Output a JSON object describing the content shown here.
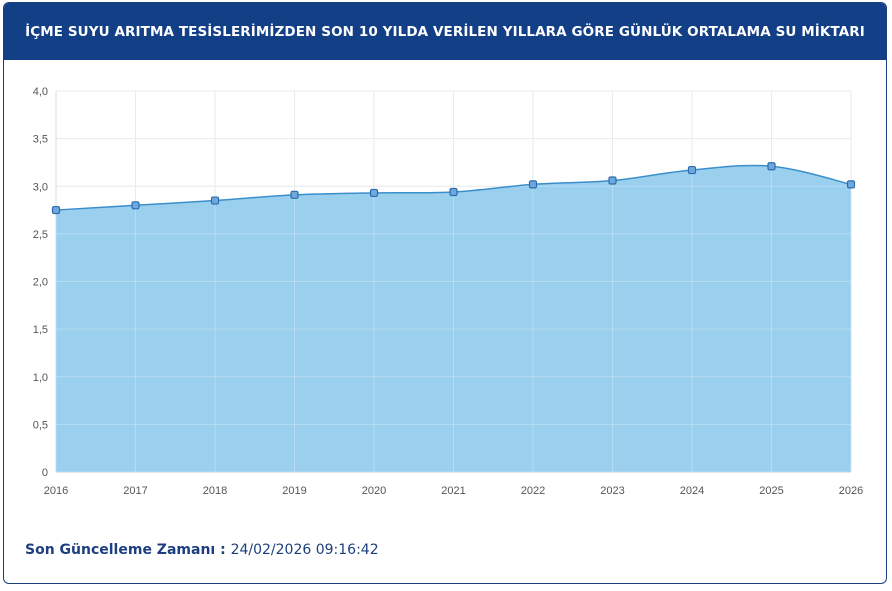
{
  "header": {
    "title": "İÇME SUYU ARITMA TESİSLERİMİZDEN SON 10 YILDA VERİLEN YILLARA GÖRE GÜNLÜK ORTALAMA SU MİKTARI"
  },
  "footer": {
    "label": "Son Güncelleme Zamanı",
    "separator": " : ",
    "value": "24/02/2026 09:16:42"
  },
  "colors": {
    "header_bg": "#133f86",
    "area_fill": "#9bcfee",
    "line": "#3a8fcb",
    "marker_fill": "#6fa8dc",
    "marker_stroke": "#2a6cad",
    "footer_text": "#1d3f80"
  },
  "chart_data": {
    "type": "area",
    "x": [
      "2016",
      "2017",
      "2018",
      "2019",
      "2020",
      "2021",
      "2022",
      "2023",
      "2024",
      "2025",
      "2026"
    ],
    "series": [
      {
        "values": [
          2.75,
          2.8,
          2.85,
          2.91,
          2.93,
          2.94,
          3.02,
          3.06,
          3.17,
          3.21,
          3.02
        ]
      }
    ],
    "ylim": [
      0,
      4
    ],
    "yticks": [
      0,
      0.5,
      1.0,
      1.5,
      2.0,
      2.5,
      3.0,
      3.5,
      4.0
    ],
    "ytick_labels": [
      "0",
      "0,5",
      "1,0",
      "1,5",
      "2,0",
      "2,5",
      "3,0",
      "3,5",
      "4,0"
    ],
    "grid": true,
    "legend": "none",
    "xlabel": "",
    "ylabel": ""
  }
}
